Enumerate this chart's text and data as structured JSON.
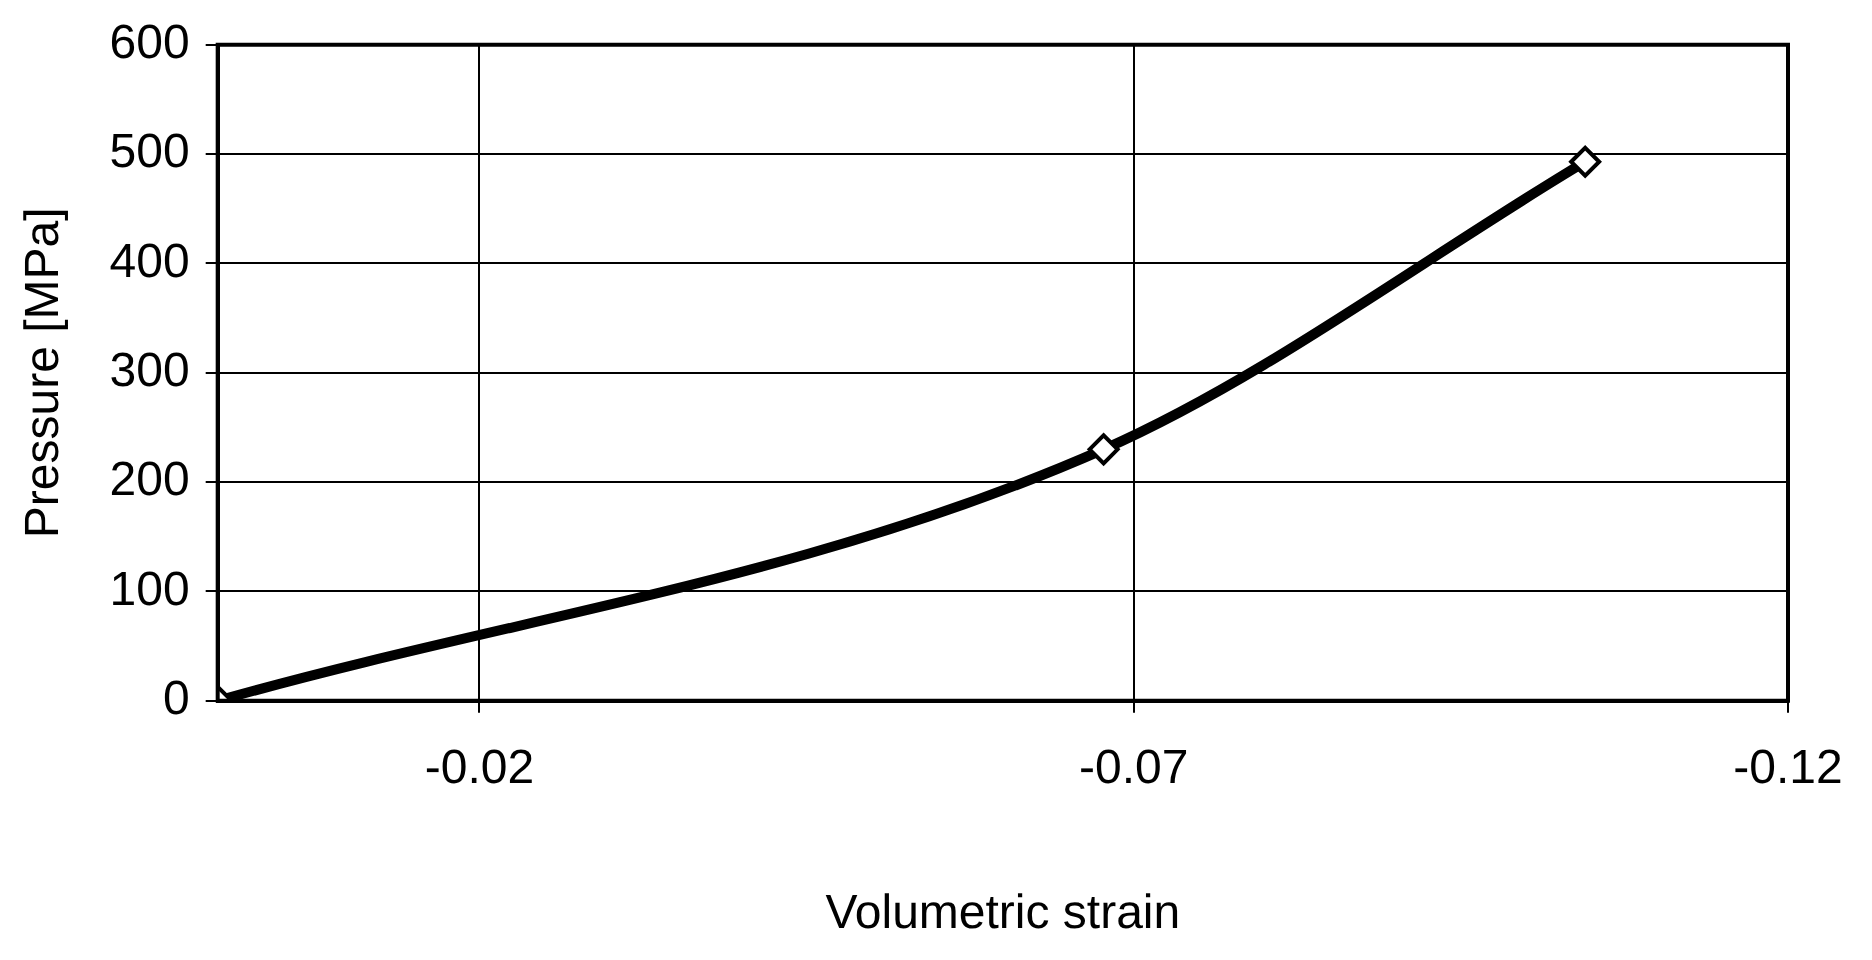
{
  "chart_data": {
    "type": "line",
    "xlabel": "Volumetric strain",
    "ylabel": "Pressure [MPa]",
    "x": [
      0,
      -0.0677,
      -0.1045
    ],
    "series": [
      {
        "color": "#000000",
        "values": [
          0,
          230,
          493
        ]
      }
    ],
    "xlim": [
      0,
      -0.12
    ],
    "xticks": [
      -0.02,
      -0.07,
      -0.12
    ],
    "ylim": [
      0,
      600
    ],
    "yticks": [
      0,
      100,
      200,
      300,
      400,
      500,
      600
    ],
    "grid": true,
    "legend": false,
    "marker": "diamond",
    "line_style": "solid"
  }
}
